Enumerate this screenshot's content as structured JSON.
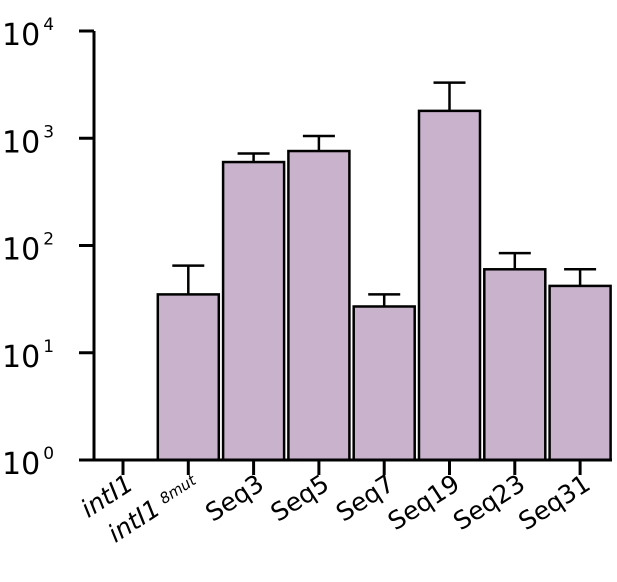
{
  "chart_data": {
    "type": "bar",
    "yscale": "log",
    "ylim": [
      1,
      10000
    ],
    "yticks": [
      {
        "value": 1,
        "base": "10",
        "exp": "0"
      },
      {
        "value": 10,
        "base": "10",
        "exp": "1"
      },
      {
        "value": 100,
        "base": "10",
        "exp": "2"
      },
      {
        "value": 1000,
        "base": "10",
        "exp": "3"
      },
      {
        "value": 10000,
        "base": "10",
        "exp": "4"
      }
    ],
    "categories": [
      {
        "label": "intI1",
        "italic": true,
        "sub": ""
      },
      {
        "label": "intI1",
        "italic": true,
        "sub": "8mut"
      },
      {
        "label": "Seq3",
        "italic": false,
        "sub": ""
      },
      {
        "label": "Seq5",
        "italic": false,
        "sub": ""
      },
      {
        "label": "Seq7",
        "italic": false,
        "sub": ""
      },
      {
        "label": "Seq19",
        "italic": false,
        "sub": ""
      },
      {
        "label": "Seq23",
        "italic": false,
        "sub": ""
      },
      {
        "label": "Seq31",
        "italic": false,
        "sub": ""
      }
    ],
    "values": [
      null,
      35,
      600,
      760,
      27,
      1800,
      60,
      42
    ],
    "error_upper": [
      null,
      65,
      720,
      1050,
      35,
      3300,
      85,
      60
    ],
    "bar_color": "#c8b2cc",
    "bar_edge_color": "#000000",
    "grid": false,
    "title": "",
    "xlabel": "",
    "ylabel": ""
  }
}
